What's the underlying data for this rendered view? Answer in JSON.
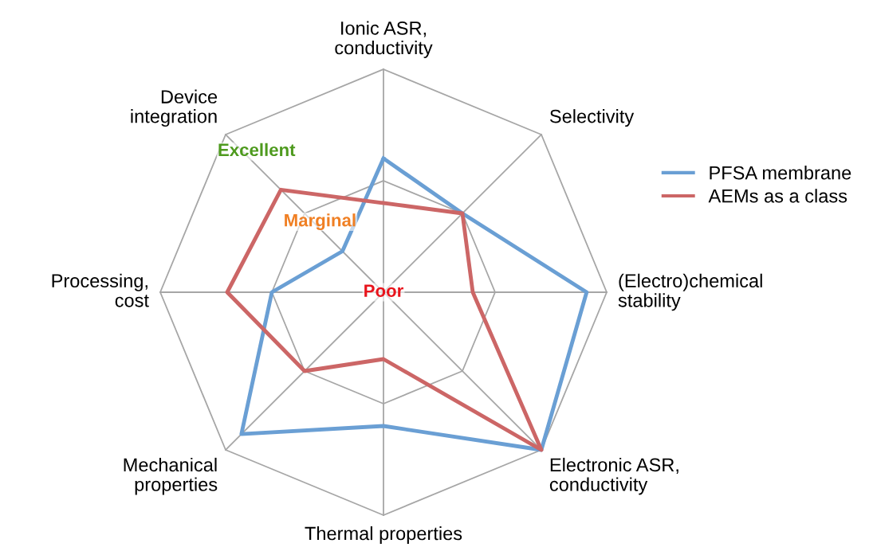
{
  "chart_data": {
    "type": "radar",
    "categories": [
      "Ionic ASR,\nconductivity",
      "Selectivity",
      "(Electro)chemical\nstability",
      "Electronic ASR,\nconductivity",
      "Thermal properties",
      "Mechanical\nproperties",
      "Processing,\ncost",
      "Device\nintegration"
    ],
    "series": [
      {
        "name": "PFSA membrane",
        "color": "#6a9fd4",
        "values": [
          0.6,
          0.5,
          0.91,
          1.0,
          0.6,
          0.9,
          0.5,
          0.26
        ]
      },
      {
        "name": "AEMs as a class",
        "color": "#cc6666",
        "values": [
          0.4,
          0.5,
          0.4,
          1.0,
          0.3,
          0.5,
          0.7,
          0.65
        ]
      }
    ],
    "ylim": [
      0,
      1
    ],
    "yticks": [
      {
        "value": 0,
        "label": "Poor"
      },
      {
        "value": 0.5,
        "label": "Marginal"
      },
      {
        "value": 1,
        "label": "Excellent"
      }
    ],
    "grid": true,
    "legend": "right",
    "marker": "none",
    "line_style": "solid"
  }
}
